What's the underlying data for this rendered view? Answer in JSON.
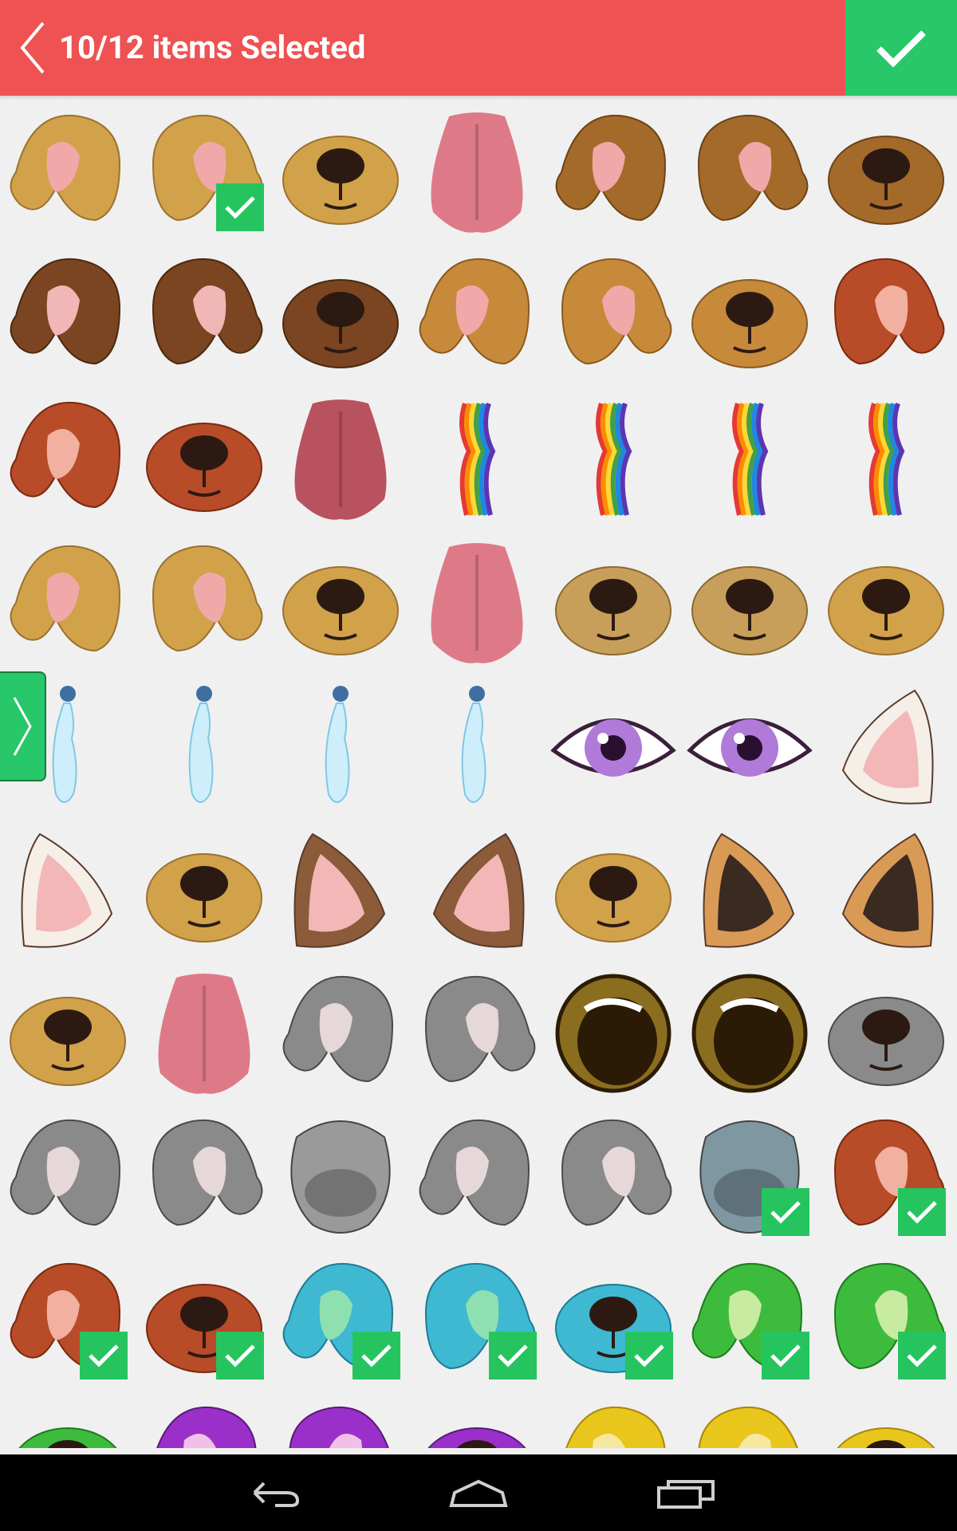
{
  "header": {
    "title": "10/12 items Selected",
    "back_icon": "chevron-left-icon",
    "done_icon": "checkmark-icon",
    "bg_color": "#ee5253",
    "done_color": "#27c76a"
  },
  "side_tab": {
    "icon": "chevron-right-icon"
  },
  "grid": {
    "columns": 7,
    "rows": [
      [
        "dog-ear-left-tan",
        "dog-ear-right-tan",
        "dog-nose-tan",
        "pink-tongue",
        "dog-ear-left-brown",
        "dog-ear-right-brown",
        "dog-nose-brown"
      ],
      [
        "dog-ear-left-dark",
        "dog-ear-right-dark",
        "dog-nose-dark",
        "dog-ear-left-orange",
        "dog-ear-right-orange",
        "dog-nose-orange",
        "dog-ear-red"
      ],
      [
        "dog-ear-red-left",
        "dog-nose-red",
        "tongue-dark-pink",
        "rainbow-1",
        "rainbow-2",
        "rainbow-3",
        "rainbow-4"
      ],
      [
        "fluffy-ear-left",
        "fluffy-ear-right",
        "fluffy-nose",
        "tongue-pink",
        "cheek-left",
        "cheek-right",
        "nose-tan-large"
      ],
      [
        "tear-1",
        "tear-2",
        "tear-3",
        "tear-4",
        "purple-eye-left",
        "purple-eye-right",
        "bunny-ear-right"
      ],
      [
        "bunny-ear-left",
        "bunny-nose",
        "cat-ear-left",
        "cat-ear-right",
        "cat-nose",
        "fox-ear-left",
        "fox-ear-right"
      ],
      [
        "fox-nose",
        "long-tongue",
        "gray-ear-left",
        "gray-ear-right",
        "gold-eye-left",
        "gold-eye-right",
        "gray-nose"
      ],
      [
        "donkey-ear-left",
        "donkey-ear-right",
        "donkey-face",
        "wolf-ear-left",
        "wolf-ear-right",
        "elephant-face",
        "red-ear-right"
      ],
      [
        "red-ear-left",
        "red-nose",
        "cyan-ear-left",
        "cyan-ear-right",
        "cyan-nose",
        "green-ear-left",
        "green-ear-right"
      ],
      [
        "green-nose",
        "purple-ear-left",
        "purple-ear-right",
        "purple-nose",
        "yellow-ear-left",
        "yellow-ear-right",
        "yellow-nose"
      ]
    ],
    "selected": [
      [
        0,
        1
      ],
      [
        7,
        5
      ],
      [
        7,
        6
      ],
      [
        8,
        0
      ],
      [
        8,
        1
      ],
      [
        8,
        2
      ],
      [
        8,
        3
      ],
      [
        8,
        4
      ],
      [
        8,
        5
      ],
      [
        8,
        6
      ]
    ]
  },
  "navbar": {
    "back_icon": "nav-back-icon",
    "home_icon": "nav-home-icon",
    "recents_icon": "nav-recents-icon"
  }
}
